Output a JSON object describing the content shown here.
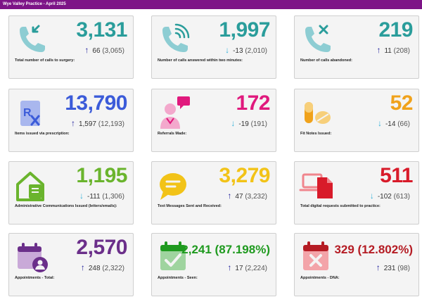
{
  "header": {
    "title": "Wye Valley Practice - April 2025"
  },
  "colors": {
    "header_bg": "#7d1487",
    "teal": "#2a9d9b",
    "blue": "#3b5bd9",
    "magenta": "#e0197d",
    "orange": "#f0a21b",
    "green": "#6ab42d",
    "yellow": "#f2c318",
    "red": "#d81b2a",
    "purple": "#6b2f8a",
    "dark_green": "#1f9a1f",
    "dark_red": "#b51c24"
  },
  "cards": [
    {
      "value": "3,131",
      "arrow": "↑",
      "direction": "up",
      "change": "66",
      "prev": "(3,065)",
      "label": "Total number of calls to surgery:",
      "icon": "phone-incoming-icon"
    },
    {
      "value": "1,997",
      "arrow": "↓",
      "direction": "down",
      "change": "-13",
      "prev": "(2,010)",
      "label": "Number of calls answered within two minutes:",
      "icon": "phone-answered-icon"
    },
    {
      "value": "219",
      "arrow": "↑",
      "direction": "up",
      "change": "11",
      "prev": "(208)",
      "label": "Number of calls abandoned:",
      "icon": "phone-abandoned-icon"
    },
    {
      "value": "13,790",
      "arrow": "↑",
      "direction": "up",
      "change": "1,597",
      "prev": "(12,193)",
      "label": "Items issued via prescription:",
      "icon": "prescription-icon"
    },
    {
      "value": "172",
      "arrow": "↓",
      "direction": "down",
      "change": "-19",
      "prev": "(191)",
      "label": "Referrals Made:",
      "icon": "referral-doctor-icon"
    },
    {
      "value": "52",
      "arrow": "↓",
      "direction": "down",
      "change": "-14",
      "prev": "(66)",
      "label": "Fit Notes Issued:",
      "icon": "pills-icon"
    },
    {
      "value": "1,195",
      "arrow": "↓",
      "direction": "down",
      "change": "-111",
      "prev": "(1,306)",
      "label": "Administrative Communications Issued (letters/emails):",
      "icon": "admin-letter-icon"
    },
    {
      "value": "3,279",
      "arrow": "↑",
      "direction": "up",
      "change": "47",
      "prev": "(3,232)",
      "label": "Text Messages Sent and Received:",
      "icon": "chat-bubble-icon"
    },
    {
      "value": "511",
      "arrow": "↓",
      "direction": "down",
      "change": "-102",
      "prev": "(613)",
      "label": "Total digital requests submitted to practice:",
      "icon": "digital-request-icon"
    },
    {
      "value": "2,570",
      "arrow": "↑",
      "direction": "up",
      "change": "248",
      "prev": "(2,322)",
      "label": "Appointments - Total:",
      "icon": "calendar-user-icon"
    },
    {
      "value": "2,241 (87.198%)",
      "arrow": "↑",
      "direction": "up",
      "change": "17",
      "prev": "(2,224)",
      "label": "Appointments - Seen:",
      "icon": "calendar-check-icon"
    },
    {
      "value": "329 (12.802%)",
      "arrow": "↑",
      "direction": "up",
      "change": "231",
      "prev": "(98)",
      "label": "Appointments - DNA:",
      "icon": "calendar-cross-icon"
    }
  ]
}
